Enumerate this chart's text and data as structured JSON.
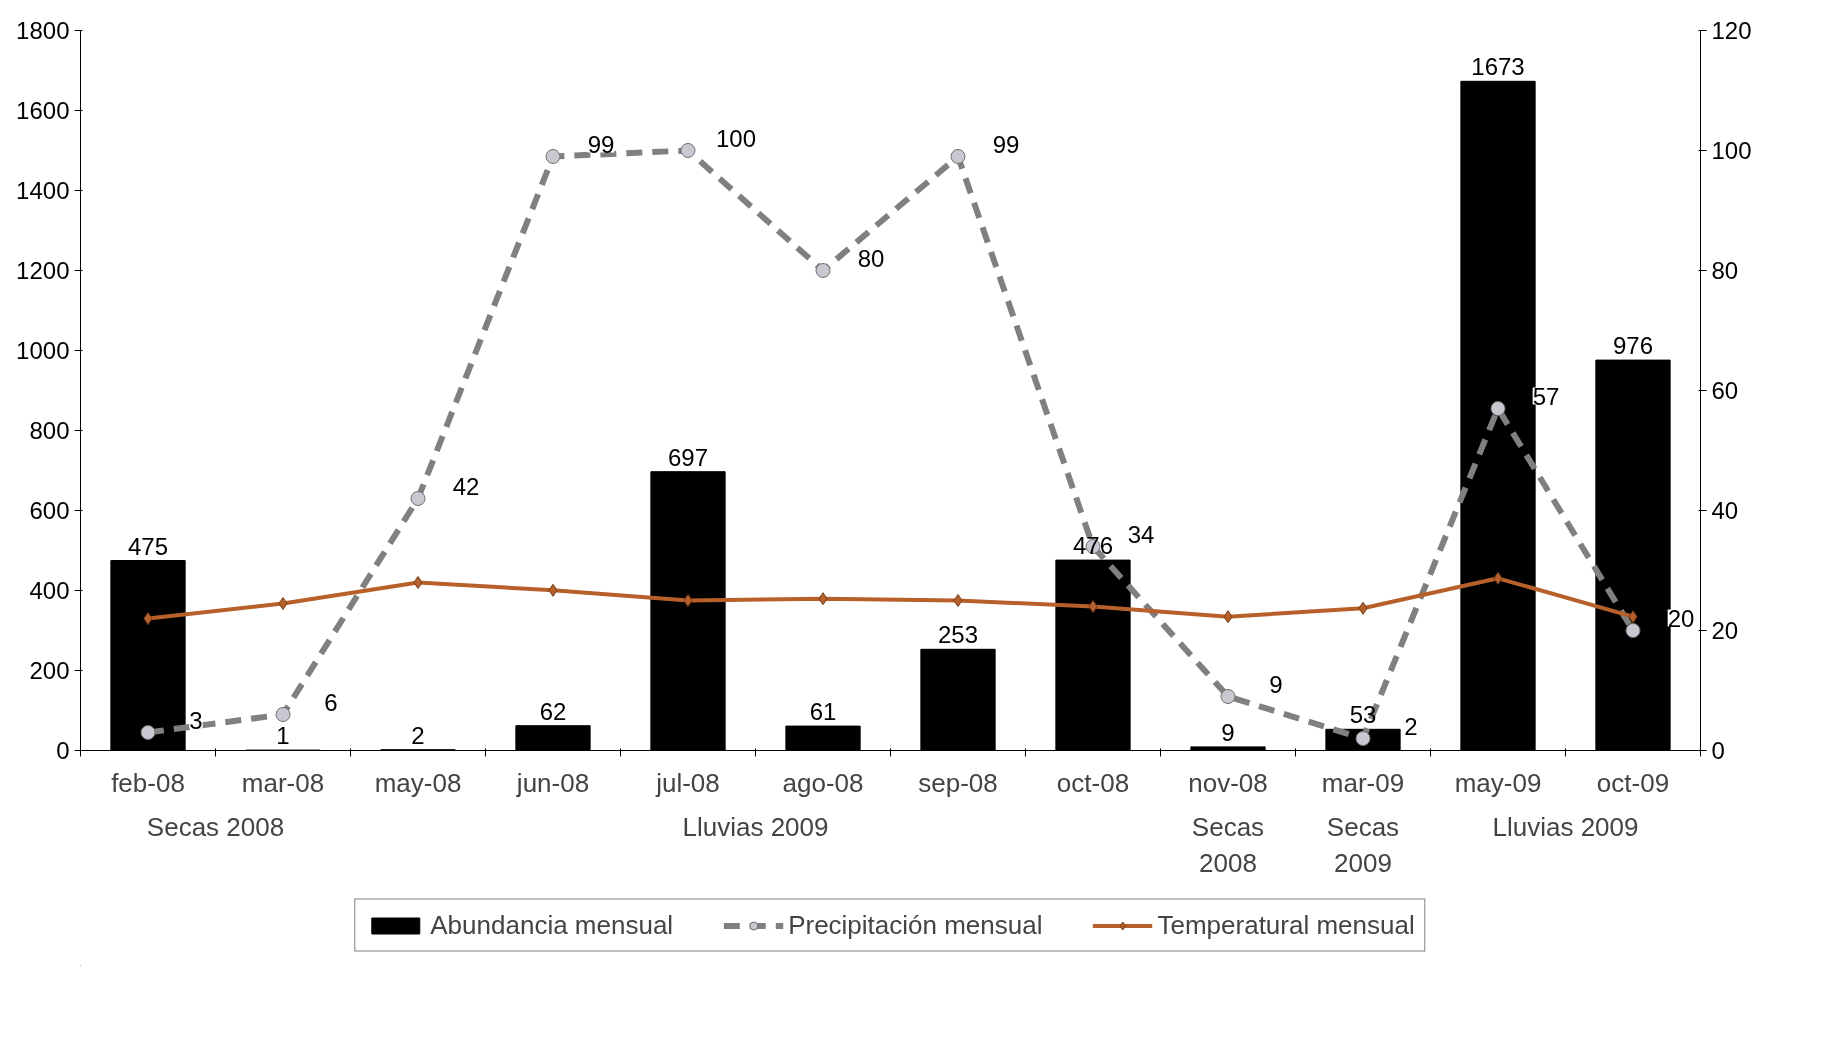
{
  "chart_data": {
    "type": "bar",
    "categories": [
      "feb-08",
      "mar-08",
      "may-08",
      "jun-08",
      "jul-08",
      "ago-08",
      "sep-08",
      "oct-08",
      "nov-08",
      "mar-09",
      "may-09",
      "oct-09"
    ],
    "series": [
      {
        "name": "Abundancia mensual",
        "color": "#000000",
        "values": [
          475,
          1,
          2,
          62,
          697,
          61,
          253,
          476,
          9,
          53,
          1673,
          976
        ],
        "value_labels": [
          "475",
          "1",
          "2",
          "62",
          "697",
          "61",
          "253",
          "476",
          "9",
          "53",
          "1673",
          "976"
        ]
      },
      {
        "name": "Precipitación mensual",
        "type": "line",
        "axis": "y2",
        "color": "#808080",
        "line_style": "dashed",
        "marker": "circle",
        "values": [
          3,
          6,
          42,
          99,
          100,
          80,
          99,
          34,
          9,
          2,
          57,
          20
        ],
        "value_labels": [
          "3",
          "6",
          "42",
          "99",
          "100",
          "80",
          "99",
          "34",
          "9",
          "2",
          "57",
          "20"
        ]
      },
      {
        "name": "Temperatural mensual",
        "type": "line",
        "axis": "y2",
        "color": "#b8602a",
        "line_style": "solid",
        "marker": "diamond",
        "values": [
          22,
          24.5,
          28,
          26.7,
          25,
          25.3,
          25,
          24,
          22.3,
          23.7,
          28.7,
          22.3
        ]
      }
    ],
    "annotations": [
      "Secas 2008",
      "Lluvias 2009",
      "Secas\n2008",
      "Secas\n2009",
      "Lluvias 2009"
    ],
    "ylim": [
      0,
      1800
    ],
    "yticks": [
      0,
      200,
      400,
      600,
      800,
      1000,
      1200,
      1400,
      1600,
      1800
    ],
    "y2lim": [
      0,
      120
    ],
    "y2ticks": [
      0,
      20,
      40,
      60,
      80,
      100,
      120
    ],
    "grid": false,
    "legend": "bottom"
  }
}
